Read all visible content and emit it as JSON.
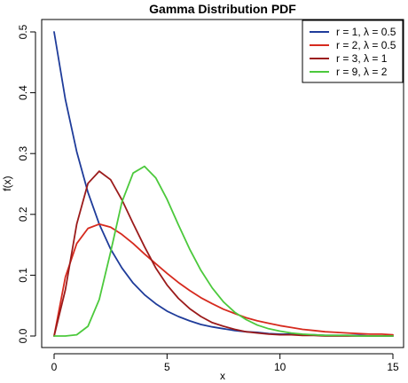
{
  "chart_data": {
    "type": "line",
    "title": "Gamma Distribution PDF",
    "xlabel": "x",
    "ylabel": "f(x)",
    "xlim": [
      0,
      15
    ],
    "ylim": [
      0,
      0.5
    ],
    "x_ticks": [
      "0",
      "5",
      "10",
      "15"
    ],
    "y_ticks": [
      "0.0",
      "0.1",
      "0.2",
      "0.3",
      "0.4",
      "0.5"
    ],
    "grid": false,
    "legend_position": "top-right",
    "x": [
      0,
      0.5,
      1,
      1.5,
      2,
      2.5,
      3,
      3.5,
      4,
      4.5,
      5,
      5.5,
      6,
      6.5,
      7,
      7.5,
      8,
      8.5,
      9,
      9.5,
      10,
      10.5,
      11,
      11.5,
      12,
      12.5,
      13,
      13.5,
      14,
      14.5,
      15
    ],
    "series": [
      {
        "name": "r = 1, λ = 0.5",
        "color": "#1f3c9a",
        "values": [
          0.5,
          0.389,
          0.303,
          0.236,
          0.184,
          0.143,
          0.112,
          0.087,
          0.068,
          0.053,
          0.041,
          0.032,
          0.025,
          0.019,
          0.015,
          0.012,
          0.009,
          0.007,
          0.006,
          0.004,
          0.003,
          0.003,
          0.002,
          0.002,
          0.001,
          0.001,
          0.001,
          0.001,
          0.0,
          0.0,
          0.0
        ]
      },
      {
        "name": "r = 2, λ = 0.5",
        "color": "#d62a1e",
        "values": [
          0.0,
          0.097,
          0.152,
          0.177,
          0.184,
          0.179,
          0.167,
          0.152,
          0.135,
          0.119,
          0.103,
          0.088,
          0.075,
          0.063,
          0.053,
          0.044,
          0.037,
          0.03,
          0.025,
          0.021,
          0.017,
          0.014,
          0.011,
          0.009,
          0.007,
          0.006,
          0.005,
          0.004,
          0.003,
          0.003,
          0.002
        ]
      },
      {
        "name": "r = 3, λ = 1",
        "color": "#9b1b1b",
        "values": [
          0.0,
          0.076,
          0.184,
          0.251,
          0.271,
          0.257,
          0.224,
          0.185,
          0.147,
          0.112,
          0.084,
          0.062,
          0.045,
          0.032,
          0.022,
          0.016,
          0.011,
          0.007,
          0.005,
          0.003,
          0.002,
          0.002,
          0.001,
          0.001,
          0.0,
          0.0,
          0.0,
          0.0,
          0.0,
          0.0,
          0.0
        ]
      },
      {
        "name": "r = 9, λ = 2",
        "color": "#4cc93c",
        "values": [
          0.0,
          0.0,
          0.002,
          0.016,
          0.06,
          0.138,
          0.22,
          0.268,
          0.279,
          0.26,
          0.225,
          0.183,
          0.143,
          0.108,
          0.079,
          0.056,
          0.039,
          0.027,
          0.018,
          0.012,
          0.008,
          0.005,
          0.003,
          0.002,
          0.001,
          0.001,
          0.001,
          0.0,
          0.0,
          0.0,
          0.0
        ]
      }
    ]
  }
}
